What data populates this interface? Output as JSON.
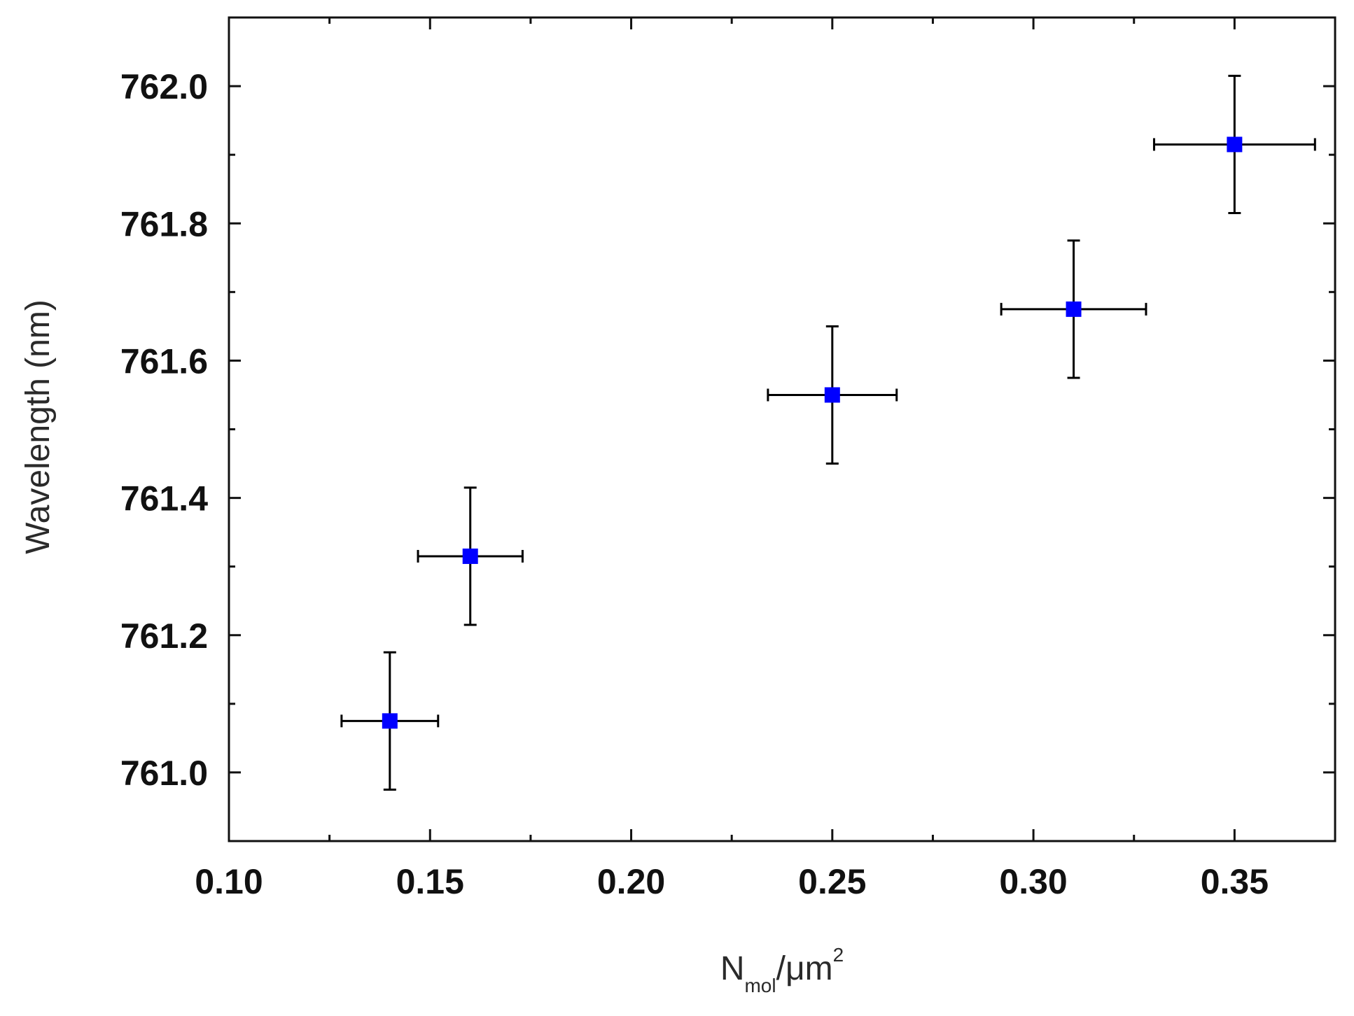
{
  "chart_data": {
    "type": "scatter",
    "title": "",
    "xlabel": {
      "base": "N",
      "subscript": "mol",
      "rest": "/μm",
      "superscript": "2"
    },
    "ylabel": "Wavelength (nm)",
    "xlim": [
      0.1,
      0.375
    ],
    "ylim": [
      760.9,
      762.1
    ],
    "x_ticks": [
      0.1,
      0.15,
      0.2,
      0.25,
      0.3,
      0.35
    ],
    "x_tick_labels": [
      "0.10",
      "0.15",
      "0.20",
      "0.25",
      "0.30",
      "0.35"
    ],
    "y_ticks": [
      761.0,
      761.2,
      761.4,
      761.6,
      761.8,
      762.0
    ],
    "y_tick_labels": [
      "761.0",
      "761.2",
      "761.4",
      "761.6",
      "761.8",
      "762.0"
    ],
    "x_minor_step": 0.025,
    "y_minor_step": 0.1,
    "grid": false,
    "legend": "none",
    "marker": "square",
    "marker_color": "#0000ff",
    "errorbar_color": "#000000",
    "series": [
      {
        "name": "data",
        "points": [
          {
            "x": 0.14,
            "y": 761.075,
            "xerr": 0.012,
            "yerr": 0.1
          },
          {
            "x": 0.16,
            "y": 761.315,
            "xerr": 0.013,
            "yerr": 0.1
          },
          {
            "x": 0.25,
            "y": 761.55,
            "xerr": 0.016,
            "yerr": 0.1
          },
          {
            "x": 0.31,
            "y": 761.675,
            "xerr": 0.018,
            "yerr": 0.1
          },
          {
            "x": 0.35,
            "y": 761.915,
            "xerr": 0.02,
            "yerr": 0.1
          }
        ]
      }
    ]
  }
}
